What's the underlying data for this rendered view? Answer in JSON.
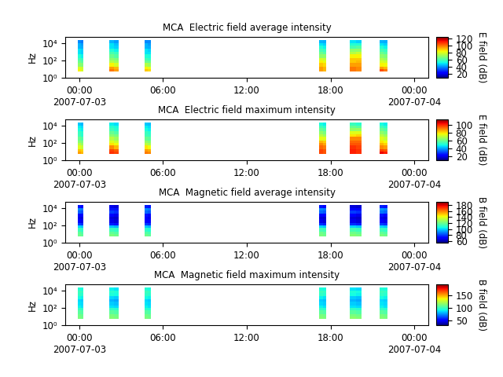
{
  "chart_data": [
    {
      "type": "heatmap",
      "title": "MCA  Electric field average intensity",
      "y_label": "Hz",
      "log": "y",
      "xlim": [
        -1,
        25
      ],
      "xticks": [
        {
          "value": 0,
          "label": "00:00\n2007-07-03"
        },
        {
          "value": 6,
          "label": "06:00"
        },
        {
          "value": 12,
          "label": "12:00"
        },
        {
          "value": 18,
          "label": "18:00"
        },
        {
          "value": 24,
          "label": "00:00\n2007-07-04"
        }
      ],
      "ylim": [
        1,
        50000
      ],
      "yticks": [
        {
          "value": 1,
          "label": "10⁰"
        },
        {
          "value": 100,
          "label": "10²"
        },
        {
          "value": 10000,
          "label": "10⁴"
        }
      ],
      "freq_edges": [
        5,
        10,
        20,
        50,
        100,
        200,
        500,
        1000,
        2000,
        5000,
        10000,
        20000
      ],
      "segments": [
        {
          "t": [
            -0.1,
            0.1,
            0.3
          ],
          "values": [
            [
              85,
              80,
              70,
              65,
              60,
              55,
              50,
              50,
              45,
              45,
              40
            ],
            [
              80,
              78,
              68,
              62,
              58,
              52,
              48,
              48,
              44,
              42,
              38
            ]
          ]
        },
        {
          "t": [
            2.15,
            2.5,
            2.85
          ],
          "values": [
            [
              100,
              95,
              85,
              75,
              70,
              65,
              60,
              55,
              50,
              50,
              45
            ],
            [
              95,
              92,
              80,
              72,
              68,
              62,
              58,
              52,
              48,
              46,
              42
            ]
          ]
        },
        {
          "t": [
            4.7,
            4.9,
            5.15
          ],
          "values": [
            [
              90,
              85,
              75,
              65,
              60,
              55,
              50,
              50,
              45,
              45,
              40
            ],
            [
              88,
              82,
              72,
              64,
              58,
              54,
              50,
              48,
              44,
              42,
              40
            ]
          ]
        },
        {
          "t": [
            17.2,
            17.45,
            17.7
          ],
          "values": [
            [
              95,
              95,
              90,
              85,
              80,
              70,
              65,
              60,
              55,
              50,
              45
            ],
            [
              92,
              92,
              88,
              82,
              78,
              70,
              62,
              58,
              52,
              48,
              44
            ]
          ]
        },
        {
          "t": [
            19.4,
            19.8,
            20.2
          ],
          "values": [
            [
              100,
              100,
              95,
              90,
              90,
              85,
              75,
              70,
              60,
              55,
              50
            ],
            [
              98,
              98,
              95,
              92,
              90,
              85,
              78,
              70,
              62,
              55,
              48
            ]
          ]
        },
        {
          "t": [
            21.5,
            21.8,
            22.1
          ],
          "values": [
            [
              105,
              95,
              85,
              80,
              75,
              70,
              65,
              60,
              55,
              50,
              45
            ],
            [
              100,
              92,
              84,
              78,
              72,
              68,
              62,
              58,
              52,
              48,
              44
            ]
          ]
        }
      ],
      "colorbar_label": "E field (dB)",
      "colorbar_range": [
        10,
        125
      ],
      "colorbar_ticks": [
        20,
        40,
        60,
        80,
        100,
        120
      ]
    },
    {
      "type": "heatmap",
      "title": "MCA  Electric field maximum intensity",
      "y_label": "Hz",
      "log": "y",
      "xlim": [
        -1,
        25
      ],
      "xticks": [
        {
          "value": 0,
          "label": "00:00\n2007-07-03"
        },
        {
          "value": 6,
          "label": "06:00"
        },
        {
          "value": 12,
          "label": "12:00"
        },
        {
          "value": 18,
          "label": "18:00"
        },
        {
          "value": 24,
          "label": "00:00\n2007-07-04"
        }
      ],
      "ylim": [
        1,
        50000
      ],
      "yticks": [
        {
          "value": 1,
          "label": "10⁰"
        },
        {
          "value": 100,
          "label": "10²"
        },
        {
          "value": 10000,
          "label": "10⁴"
        }
      ],
      "freq_edges": [
        5,
        10,
        20,
        50,
        100,
        200,
        500,
        1000,
        2000,
        5000,
        10000,
        20000
      ],
      "segments": [
        {
          "t": [
            -0.1,
            0.1,
            0.3
          ],
          "values": [
            [
              88,
              84,
              75,
              70,
              64,
              60,
              55,
              54,
              50,
              48,
              44
            ],
            [
              85,
              82,
              72,
              66,
              62,
              57,
              52,
              52,
              48,
              46,
              42
            ]
          ]
        },
        {
          "t": [
            2.15,
            2.5,
            2.85
          ],
          "values": [
            [
              100,
              98,
              90,
              80,
              75,
              70,
              64,
              60,
              55,
              52,
              48
            ],
            [
              98,
              95,
              85,
              77,
              72,
              67,
              62,
              57,
              52,
              50,
              46
            ]
          ]
        },
        {
          "t": [
            4.7,
            4.9,
            5.15
          ],
          "values": [
            [
              92,
              88,
              80,
              70,
              65,
              60,
              55,
              54,
              50,
              48,
              44
            ],
            [
              90,
              86,
              77,
              68,
              63,
              58,
              54,
              52,
              48,
              46,
              43
            ]
          ]
        },
        {
          "t": [
            17.2,
            17.45,
            17.7
          ],
          "values": [
            [
              98,
              98,
              94,
              90,
              85,
              76,
              70,
              65,
              60,
              55,
              50
            ],
            [
              96,
              96,
              92,
              87,
              83,
              75,
              67,
              62,
              57,
              52,
              48
            ]
          ]
        },
        {
          "t": [
            19.4,
            19.8,
            20.2
          ],
          "values": [
            [
              102,
              102,
              100,
              96,
              94,
              90,
              80,
              75,
              65,
              60,
              54
            ],
            [
              100,
              100,
              98,
              96,
              94,
              90,
              82,
              75,
              66,
              58,
              52
            ]
          ]
        },
        {
          "t": [
            21.5,
            21.8,
            22.1
          ],
          "values": [
            [
              105,
              98,
              90,
              85,
              80,
              75,
              70,
              65,
              60,
              55,
              50
            ],
            [
              102,
              96,
              88,
              82,
              77,
              72,
              67,
              62,
              57,
              52,
              48
            ]
          ]
        }
      ],
      "colorbar_label": "E field (dB)",
      "colorbar_range": [
        10,
        115
      ],
      "colorbar_ticks": [
        20,
        40,
        60,
        80,
        100
      ]
    },
    {
      "type": "heatmap",
      "title": "MCA  Magnetic field average intensity",
      "y_label": "Hz",
      "log": "y",
      "xlim": [
        -1,
        25
      ],
      "xticks": [
        {
          "value": 0,
          "label": "00:00\n2007-07-03"
        },
        {
          "value": 6,
          "label": "06:00"
        },
        {
          "value": 12,
          "label": "12:00"
        },
        {
          "value": 18,
          "label": "18:00"
        },
        {
          "value": 24,
          "label": "00:00\n2007-07-04"
        }
      ],
      "ylim": [
        1,
        50000
      ],
      "yticks": [
        {
          "value": 1,
          "label": "10⁰"
        },
        {
          "value": 100,
          "label": "10²"
        },
        {
          "value": 10000,
          "label": "10⁴"
        }
      ],
      "freq_edges": [
        5,
        10,
        20,
        50,
        100,
        200,
        500,
        1000,
        2000,
        5000,
        10000,
        20000
      ],
      "segments": [
        {
          "t": [
            -0.1,
            0.1,
            0.3
          ],
          "values": [
            [
              120,
              118,
              112,
              100,
              80,
              70,
              68,
              72,
              85,
              90,
              75
            ],
            [
              118,
              115,
              110,
              98,
              78,
              68,
              66,
              70,
              82,
              88,
              72
            ]
          ]
        },
        {
          "t": [
            2.15,
            2.5,
            2.85
          ],
          "values": [
            [
              122,
              118,
              112,
              98,
              76,
              68,
              66,
              70,
              80,
              75,
              68
            ],
            [
              120,
              116,
              110,
              96,
              74,
              66,
              64,
              68,
              78,
              74,
              66
            ]
          ]
        },
        {
          "t": [
            4.7,
            4.9,
            5.15
          ],
          "values": [
            [
              120,
              116,
              110,
              98,
              80,
              72,
              70,
              74,
              86,
              90,
              76
            ],
            [
              118,
              114,
              108,
              96,
              78,
              70,
              68,
              72,
              84,
              88,
              74
            ]
          ]
        },
        {
          "t": [
            17.2,
            17.45,
            17.7
          ],
          "values": [
            [
              122,
              120,
              114,
              100,
              78,
              68,
              66,
              72,
              86,
              90,
              74
            ],
            [
              120,
              118,
              112,
              98,
              76,
              66,
              64,
              70,
              84,
              88,
              72
            ]
          ]
        },
        {
          "t": [
            19.4,
            19.8,
            20.2
          ],
          "values": [
            [
              124,
              120,
              114,
              100,
              78,
              68,
              66,
              70,
              80,
              72,
              66
            ],
            [
              122,
              118,
              112,
              98,
              76,
              66,
              64,
              68,
              78,
              70,
              64
            ]
          ]
        },
        {
          "t": [
            21.5,
            21.8,
            22.1
          ],
          "values": [
            [
              122,
              118,
              112,
              100,
              80,
              70,
              68,
              74,
              88,
              92,
              76
            ],
            [
              120,
              116,
              110,
              98,
              78,
              68,
              66,
              72,
              86,
              90,
              74
            ]
          ]
        }
      ],
      "colorbar_label": "B field (dB)",
      "colorbar_range": [
        55,
        190
      ],
      "colorbar_ticks": [
        60,
        80,
        100,
        120,
        140,
        160,
        180
      ]
    },
    {
      "type": "heatmap",
      "title": "MCA  Magnetic field maximum intensity",
      "y_label": "Hz",
      "log": "y",
      "xlim": [
        -1,
        25
      ],
      "xticks": [
        {
          "value": 0,
          "label": "00:00\n2007-07-03"
        },
        {
          "value": 6,
          "label": "06:00"
        },
        {
          "value": 12,
          "label": "12:00"
        },
        {
          "value": 18,
          "label": "18:00"
        },
        {
          "value": 24,
          "label": "00:00\n2007-07-04"
        }
      ],
      "ylim": [
        1,
        50000
      ],
      "yticks": [
        {
          "value": 1,
          "label": "10⁰"
        },
        {
          "value": 100,
          "label": "10²"
        },
        {
          "value": 10000,
          "label": "10⁴"
        }
      ],
      "freq_edges": [
        5,
        10,
        20,
        50,
        100,
        200,
        500,
        1000,
        2000,
        5000,
        10000,
        20000
      ],
      "segments": [
        {
          "t": [
            -0.1,
            0.1,
            0.3
          ],
          "values": [
            [
              112,
              110,
              106,
              98,
              90,
              88,
              86,
              92,
              98,
              100,
              95
            ],
            [
              110,
              108,
              104,
              96,
              88,
              86,
              84,
              90,
              96,
              98,
              93
            ]
          ]
        },
        {
          "t": [
            2.15,
            2.5,
            2.85
          ],
          "values": [
            [
              114,
              112,
              106,
              98,
              88,
              84,
              80,
              86,
              94,
              96,
              90
            ],
            [
              112,
              110,
              104,
              96,
              86,
              82,
              78,
              84,
              92,
              94,
              88
            ]
          ]
        },
        {
          "t": [
            4.7,
            4.9,
            5.15
          ],
          "values": [
            [
              112,
              110,
              105,
              97,
              90,
              88,
              86,
              92,
              98,
              100,
              95
            ],
            [
              110,
              108,
              103,
              95,
              88,
              86,
              84,
              90,
              96,
              98,
              93
            ]
          ]
        },
        {
          "t": [
            17.2,
            17.45,
            17.7
          ],
          "values": [
            [
              114,
              112,
              106,
              98,
              90,
              86,
              84,
              90,
              98,
              100,
              94
            ],
            [
              112,
              110,
              104,
              96,
              88,
              84,
              82,
              88,
              96,
              98,
              92
            ]
          ]
        },
        {
          "t": [
            19.4,
            19.8,
            20.2
          ],
          "values": [
            [
              116,
              112,
              106,
              98,
              88,
              84,
              80,
              84,
              92,
              94,
              88
            ],
            [
              114,
              110,
              104,
              96,
              86,
              82,
              78,
              82,
              90,
              92,
              86
            ]
          ]
        },
        {
          "t": [
            21.5,
            21.8,
            22.1
          ],
          "values": [
            [
              114,
              112,
              106,
              98,
              90,
              88,
              86,
              92,
              98,
              100,
              95
            ],
            [
              112,
              110,
              104,
              96,
              88,
              86,
              84,
              90,
              96,
              98,
              93
            ]
          ]
        }
      ],
      "colorbar_label": "B field (dB)",
      "colorbar_range": [
        30,
        195
      ],
      "colorbar_ticks": [
        50,
        100,
        150
      ]
    }
  ]
}
